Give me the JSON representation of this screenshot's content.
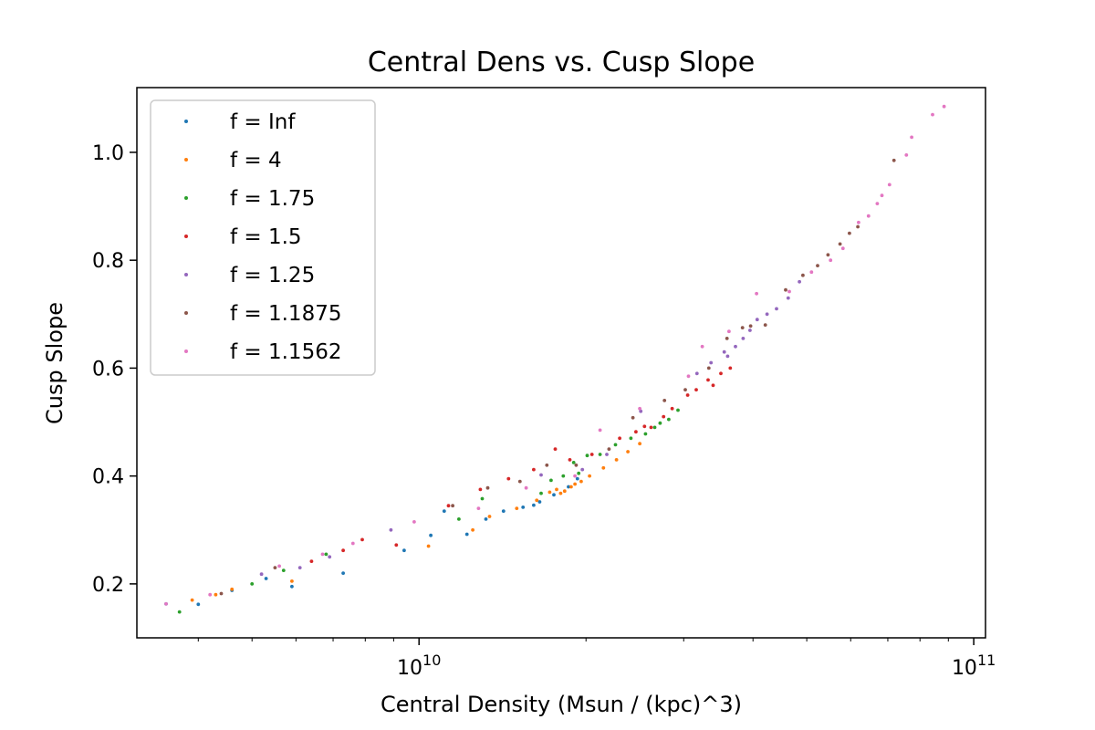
{
  "chart_data": {
    "type": "scatter",
    "title": "Central Dens vs. Cusp Slope",
    "xlabel": "Central Density (Msun / (kpc)^3)",
    "ylabel": "Cusp Slope",
    "xscale": "log",
    "xlim": [
      3100000000,
      105000000000
    ],
    "ylim": [
      0.1,
      1.12
    ],
    "xticks_major": [
      {
        "value": 10000000000,
        "base": "10",
        "exp": "10"
      },
      {
        "value": 100000000000,
        "base": "10",
        "exp": "11"
      }
    ],
    "xticks_minor": [
      4000000000,
      5000000000,
      6000000000,
      7000000000,
      8000000000,
      9000000000,
      20000000000,
      30000000000,
      40000000000,
      50000000000,
      60000000000,
      70000000000,
      80000000000,
      90000000000
    ],
    "yticks": [
      {
        "value": 0.2,
        "label": "0.2"
      },
      {
        "value": 0.4,
        "label": "0.4"
      },
      {
        "value": 0.6,
        "label": "0.6"
      },
      {
        "value": 0.8,
        "label": "0.8"
      },
      {
        "value": 1.0,
        "label": "1.0"
      }
    ],
    "grid": false,
    "legend_position": "top-left",
    "series": [
      {
        "name": "f = Inf",
        "color": "#1f77b4",
        "points": [
          [
            3500000000.0,
            0.163
          ],
          [
            4000000000.0,
            0.162
          ],
          [
            4600000000.0,
            0.188
          ],
          [
            5900000000.0,
            0.195
          ],
          [
            7300000000.0,
            0.22
          ],
          [
            9400000000.0,
            0.262
          ],
          [
            10500000000.0,
            0.29
          ],
          [
            12200000000.0,
            0.292
          ],
          [
            13200000000.0,
            0.32
          ],
          [
            14200000000.0,
            0.335
          ],
          [
            15400000000.0,
            0.342
          ],
          [
            16500000000.0,
            0.352
          ],
          [
            17500000000.0,
            0.365
          ],
          [
            18600000000.0,
            0.38
          ],
          [
            19300000000.0,
            0.395
          ],
          [
            5300000000.0,
            0.21
          ],
          [
            11100000000.0,
            0.335
          ],
          [
            16100000000.0,
            0.346
          ]
        ]
      },
      {
        "name": "f = 4",
        "color": "#ff7f0e",
        "points": [
          [
            3900000000.0,
            0.17
          ],
          [
            4300000000.0,
            0.18
          ],
          [
            4600000000.0,
            0.19
          ],
          [
            5900000000.0,
            0.205
          ],
          [
            10400000000.0,
            0.27
          ],
          [
            12500000000.0,
            0.3
          ],
          [
            13400000000.0,
            0.325
          ],
          [
            15000000000.0,
            0.34
          ],
          [
            16300000000.0,
            0.355
          ],
          [
            17200000000.0,
            0.37
          ],
          [
            17700000000.0,
            0.375
          ],
          [
            18300000000.0,
            0.372
          ],
          [
            18800000000.0,
            0.38
          ],
          [
            19600000000.0,
            0.39
          ],
          [
            20300000000.0,
            0.4
          ],
          [
            21500000000.0,
            0.415
          ],
          [
            22700000000.0,
            0.43
          ],
          [
            23800000000.0,
            0.445
          ],
          [
            25000000000.0,
            0.46
          ],
          [
            18000000000.0,
            0.368
          ],
          [
            19100000000.0,
            0.385
          ]
        ]
      },
      {
        "name": "f = 1.75",
        "color": "#2ca02c",
        "points": [
          [
            3700000000.0,
            0.148
          ],
          [
            5000000000.0,
            0.2
          ],
          [
            5700000000.0,
            0.225
          ],
          [
            6800000000.0,
            0.255
          ],
          [
            11800000000.0,
            0.32
          ],
          [
            13000000000.0,
            0.358
          ],
          [
            16600000000.0,
            0.368
          ],
          [
            17300000000.0,
            0.392
          ],
          [
            18200000000.0,
            0.4
          ],
          [
            19000000000.0,
            0.425
          ],
          [
            20100000000.0,
            0.438
          ],
          [
            21200000000.0,
            0.44
          ],
          [
            22600000000.0,
            0.458
          ],
          [
            24100000000.0,
            0.47
          ],
          [
            25600000000.0,
            0.478
          ],
          [
            26600000000.0,
            0.49
          ],
          [
            28200000000.0,
            0.505
          ],
          [
            29300000000.0,
            0.522
          ],
          [
            27200000000.0,
            0.498
          ],
          [
            19400000000.0,
            0.405
          ]
        ]
      },
      {
        "name": "f = 1.5",
        "color": "#d62728",
        "points": [
          [
            6400000000.0,
            0.242
          ],
          [
            7300000000.0,
            0.262
          ],
          [
            7900000000.0,
            0.282
          ],
          [
            9100000000.0,
            0.272
          ],
          [
            11300000000.0,
            0.345
          ],
          [
            12900000000.0,
            0.375
          ],
          [
            14500000000.0,
            0.395
          ],
          [
            16100000000.0,
            0.412
          ],
          [
            17600000000.0,
            0.45
          ],
          [
            18700000000.0,
            0.43
          ],
          [
            20500000000.0,
            0.44
          ],
          [
            23000000000.0,
            0.47
          ],
          [
            24600000000.0,
            0.482
          ],
          [
            25500000000.0,
            0.492
          ],
          [
            26200000000.0,
            0.49
          ],
          [
            27600000000.0,
            0.51
          ],
          [
            28600000000.0,
            0.525
          ],
          [
            30500000000.0,
            0.55
          ],
          [
            31600000000.0,
            0.56
          ],
          [
            33200000000.0,
            0.578
          ],
          [
            35000000000.0,
            0.59
          ],
          [
            36400000000.0,
            0.6
          ],
          [
            33900000000.0,
            0.568
          ]
        ]
      },
      {
        "name": "f = 1.25",
        "color": "#9467bd",
        "points": [
          [
            5200000000.0,
            0.218
          ],
          [
            6100000000.0,
            0.23
          ],
          [
            6900000000.0,
            0.25
          ],
          [
            8900000000.0,
            0.3
          ],
          [
            16600000000.0,
            0.402
          ],
          [
            19700000000.0,
            0.412
          ],
          [
            21800000000.0,
            0.44
          ],
          [
            25100000000.0,
            0.52
          ],
          [
            31700000000.0,
            0.59
          ],
          [
            33600000000.0,
            0.61
          ],
          [
            35500000000.0,
            0.63
          ],
          [
            37200000000.0,
            0.64
          ],
          [
            38400000000.0,
            0.655
          ],
          [
            39500000000.0,
            0.67
          ],
          [
            40700000000.0,
            0.69
          ],
          [
            44100000000.0,
            0.71
          ],
          [
            46300000000.0,
            0.73
          ],
          [
            48500000000.0,
            0.76
          ],
          [
            36000000000.0,
            0.622
          ],
          [
            42400000000.0,
            0.7
          ]
        ]
      },
      {
        "name": "f = 1.1875",
        "color": "#8c564b",
        "points": [
          [
            4400000000.0,
            0.182
          ],
          [
            5500000000.0,
            0.23
          ],
          [
            11500000000.0,
            0.345
          ],
          [
            13300000000.0,
            0.378
          ],
          [
            15200000000.0,
            0.39
          ],
          [
            17000000000.0,
            0.42
          ],
          [
            19200000000.0,
            0.42
          ],
          [
            22000000000.0,
            0.45
          ],
          [
            24300000000.0,
            0.508
          ],
          [
            27700000000.0,
            0.54
          ],
          [
            30200000000.0,
            0.56
          ],
          [
            33300000000.0,
            0.6
          ],
          [
            35900000000.0,
            0.655
          ],
          [
            38300000000.0,
            0.675
          ],
          [
            39600000000.0,
            0.678
          ],
          [
            42100000000.0,
            0.68
          ],
          [
            45800000000.0,
            0.745
          ],
          [
            49200000000.0,
            0.772
          ],
          [
            52300000000.0,
            0.79
          ],
          [
            54600000000.0,
            0.81
          ],
          [
            57400000000.0,
            0.83
          ],
          [
            59700000000.0,
            0.85
          ],
          [
            71800000000.0,
            0.985
          ],
          [
            61800000000.0,
            0.862
          ]
        ]
      },
      {
        "name": "f = 1.1562",
        "color": "#e377c2",
        "points": [
          [
            3500000000.0,
            0.163
          ],
          [
            4200000000.0,
            0.18
          ],
          [
            5600000000.0,
            0.233
          ],
          [
            6700000000.0,
            0.255
          ],
          [
            7600000000.0,
            0.275
          ],
          [
            9800000000.0,
            0.315
          ],
          [
            12800000000.0,
            0.34
          ],
          [
            15600000000.0,
            0.378
          ],
          [
            19100000000.0,
            0.4
          ],
          [
            21200000000.0,
            0.485
          ],
          [
            25000000000.0,
            0.525
          ],
          [
            30600000000.0,
            0.585
          ],
          [
            32400000000.0,
            0.64
          ],
          [
            36200000000.0,
            0.668
          ],
          [
            40600000000.0,
            0.738
          ],
          [
            46500000000.0,
            0.742
          ],
          [
            51000000000.0,
            0.778
          ],
          [
            55200000000.0,
            0.8
          ],
          [
            58100000000.0,
            0.822
          ],
          [
            62000000000.0,
            0.87
          ],
          [
            64600000000.0,
            0.882
          ],
          [
            68300000000.0,
            0.92
          ],
          [
            70500000000.0,
            0.94
          ],
          [
            75600000000.0,
            0.995
          ],
          [
            77300000000.0,
            1.028
          ],
          [
            84300000000.0,
            1.07
          ],
          [
            88400000000.0,
            1.085
          ],
          [
            67000000000.0,
            0.905
          ]
        ]
      }
    ]
  }
}
